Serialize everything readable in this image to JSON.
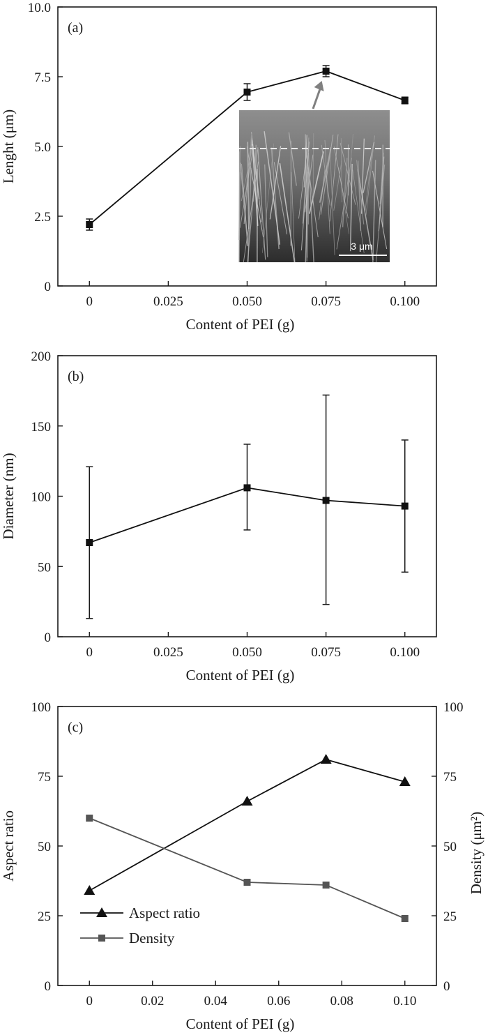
{
  "chart_data": [
    {
      "type": "line",
      "panel_label": "(a)",
      "xlabel": "Content of PEI (g)",
      "ylabel": "Lenght (μm)",
      "xlim": [
        -0.01,
        0.11
      ],
      "ylim": [
        0,
        10
      ],
      "xticks": [
        0,
        0.025,
        0.05,
        0.075,
        0.1
      ],
      "xtick_labels": [
        "0",
        "0.025",
        "0.050",
        "0.075",
        "0.100"
      ],
      "yticks": [
        0,
        2.5,
        5,
        7.5,
        10
      ],
      "ytick_labels": [
        "0",
        "2.5",
        "5.0",
        "7.5",
        "10.0"
      ],
      "x": [
        0,
        0.05,
        0.075,
        0.1
      ],
      "y": [
        2.2,
        6.95,
        7.7,
        6.65
      ],
      "yerr": [
        0.2,
        0.3,
        0.2,
        0.12
      ],
      "inset": {
        "scale_bar_label": "3 μm"
      }
    },
    {
      "type": "line",
      "panel_label": "(b)",
      "xlabel": "Content of PEI (g)",
      "ylabel": "Diameter (nm)",
      "xlim": [
        -0.01,
        0.11
      ],
      "ylim": [
        0,
        200
      ],
      "xticks": [
        0,
        0.025,
        0.05,
        0.075,
        0.1
      ],
      "xtick_labels": [
        "0",
        "0.025",
        "0.050",
        "0.075",
        "0.100"
      ],
      "yticks": [
        0,
        50,
        100,
        150,
        200
      ],
      "ytick_labels": [
        "0",
        "50",
        "100",
        "150",
        "200"
      ],
      "x": [
        0,
        0.05,
        0.075,
        0.1
      ],
      "y": [
        67,
        106,
        97,
        93
      ],
      "yerr_low": [
        13,
        76,
        23,
        46
      ],
      "yerr_high": [
        121,
        137,
        172,
        140
      ]
    },
    {
      "type": "line",
      "panel_label": "(c)",
      "xlabel": "Content of PEI (g)",
      "ylabel": "Aspect ratio",
      "ylabel_right": "Density (μm²)",
      "xlim": [
        -0.01,
        0.11
      ],
      "ylim": [
        0,
        100
      ],
      "ylim_right": [
        0,
        100
      ],
      "xticks": [
        0,
        0.02,
        0.04,
        0.06,
        0.08,
        0.1
      ],
      "xtick_labels": [
        "0",
        "0.02",
        "0.04",
        "0.06",
        "0.08",
        "0.10"
      ],
      "yticks": [
        0,
        25,
        50,
        75,
        100
      ],
      "ytick_labels": [
        "0",
        "25",
        "50",
        "75",
        "100"
      ],
      "x": [
        0,
        0.05,
        0.075,
        0.1
      ],
      "series": [
        {
          "name": "Aspect ratio",
          "values": [
            34,
            66,
            81,
            73
          ],
          "marker": "triangle",
          "color": "#111111",
          "axis": "left"
        },
        {
          "name": "Density",
          "values": [
            60,
            37,
            36,
            24
          ],
          "marker": "square",
          "color": "#555555",
          "axis": "right"
        }
      ],
      "legend": "bottom-left"
    }
  ]
}
